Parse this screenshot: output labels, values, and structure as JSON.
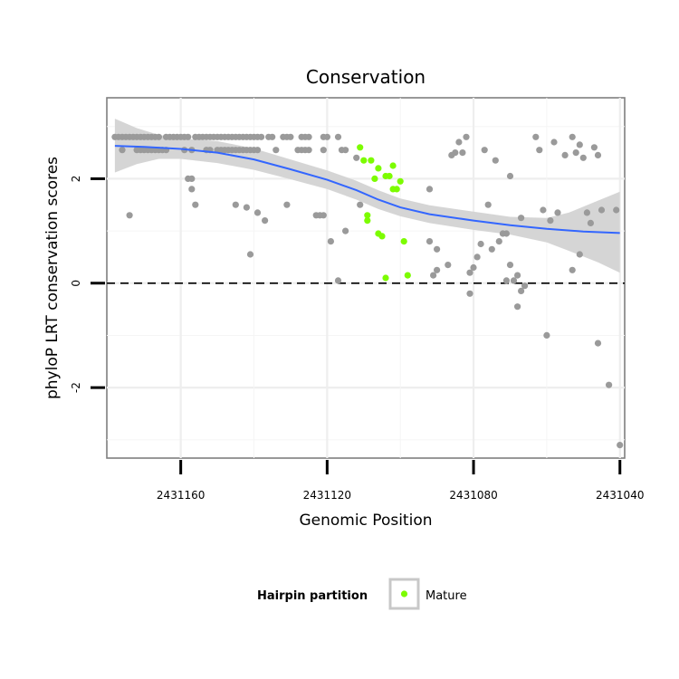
{
  "chart_data": {
    "type": "scatter",
    "title": "Conservation",
    "xlabel": "Genomic Position",
    "ylabel": "phyloP LRT conservation scores",
    "x_reversed": true,
    "xlim": [
      2431038.7,
      2431180.2
    ],
    "ylim": [
      -3.35,
      3.55
    ],
    "x_ticks": [
      2431160,
      2431120,
      2431080,
      2431040
    ],
    "x_tick_labels": [
      "2431160",
      "2431120",
      "2431080",
      "2431040"
    ],
    "y_ticks": [
      -2,
      0,
      2
    ],
    "y_tick_labels": [
      "-2",
      "0",
      "2"
    ],
    "grid": true,
    "reference_line": {
      "y": 0,
      "style": "dashed"
    },
    "legend": {
      "title": "Hairpin partition",
      "position": "bottom",
      "entries": [
        {
          "label": "Mature",
          "color": "#7cfc00"
        }
      ]
    },
    "colors": {
      "other": "#9a9a9a",
      "mature": "#7cfc00",
      "smooth": "#3366ff",
      "ribbon": "#d3d3d3"
    },
    "series": [
      {
        "name": "Other",
        "points": [
          [
            2431178,
            2.8
          ],
          [
            2431177,
            2.8
          ],
          [
            2431176,
            2.8
          ],
          [
            2431175,
            2.8
          ],
          [
            2431174,
            2.8
          ],
          [
            2431173,
            2.8
          ],
          [
            2431172,
            2.8
          ],
          [
            2431171,
            2.8
          ],
          [
            2431170,
            2.8
          ],
          [
            2431169,
            2.8
          ],
          [
            2431168,
            2.8
          ],
          [
            2431167,
            2.8
          ],
          [
            2431166,
            2.8
          ],
          [
            2431164,
            2.8
          ],
          [
            2431163,
            2.8
          ],
          [
            2431162,
            2.8
          ],
          [
            2431161,
            2.8
          ],
          [
            2431160,
            2.8
          ],
          [
            2431159,
            2.8
          ],
          [
            2431158,
            2.8
          ],
          [
            2431156,
            2.8
          ],
          [
            2431155,
            2.8
          ],
          [
            2431154,
            2.8
          ],
          [
            2431153,
            2.8
          ],
          [
            2431152,
            2.8
          ],
          [
            2431151,
            2.8
          ],
          [
            2431150,
            2.8
          ],
          [
            2431149,
            2.8
          ],
          [
            2431148,
            2.8
          ],
          [
            2431147,
            2.8
          ],
          [
            2431146,
            2.8
          ],
          [
            2431145,
            2.8
          ],
          [
            2431144,
            2.8
          ],
          [
            2431143,
            2.8
          ],
          [
            2431142,
            2.8
          ],
          [
            2431141,
            2.8
          ],
          [
            2431140,
            2.8
          ],
          [
            2431139,
            2.8
          ],
          [
            2431138,
            2.8
          ],
          [
            2431136,
            2.8
          ],
          [
            2431135,
            2.8
          ],
          [
            2431132,
            2.8
          ],
          [
            2431131,
            2.8
          ],
          [
            2431130,
            2.8
          ],
          [
            2431127,
            2.8
          ],
          [
            2431126,
            2.8
          ],
          [
            2431125,
            2.8
          ],
          [
            2431121,
            2.8
          ],
          [
            2431120,
            2.8
          ],
          [
            2431117,
            2.8
          ],
          [
            2431176,
            2.55
          ],
          [
            2431172,
            2.55
          ],
          [
            2431171,
            2.55
          ],
          [
            2431170,
            2.55
          ],
          [
            2431169,
            2.55
          ],
          [
            2431168,
            2.55
          ],
          [
            2431167,
            2.55
          ],
          [
            2431166,
            2.55
          ],
          [
            2431165,
            2.55
          ],
          [
            2431164,
            2.55
          ],
          [
            2431159,
            2.55
          ],
          [
            2431157,
            2.55
          ],
          [
            2431153,
            2.55
          ],
          [
            2431152,
            2.55
          ],
          [
            2431150,
            2.55
          ],
          [
            2431149,
            2.55
          ],
          [
            2431148,
            2.55
          ],
          [
            2431147,
            2.55
          ],
          [
            2431146,
            2.55
          ],
          [
            2431145,
            2.55
          ],
          [
            2431144,
            2.55
          ],
          [
            2431143,
            2.55
          ],
          [
            2431142,
            2.55
          ],
          [
            2431141,
            2.55
          ],
          [
            2431140,
            2.55
          ],
          [
            2431139,
            2.55
          ],
          [
            2431134,
            2.55
          ],
          [
            2431128,
            2.55
          ],
          [
            2431127,
            2.55
          ],
          [
            2431126,
            2.55
          ],
          [
            2431125,
            2.55
          ],
          [
            2431121,
            2.55
          ],
          [
            2431116,
            2.55
          ],
          [
            2431115,
            2.55
          ],
          [
            2431112,
            2.4
          ],
          [
            2431158,
            2.0
          ],
          [
            2431157,
            2.0
          ],
          [
            2431157,
            1.8
          ],
          [
            2431156,
            1.5
          ],
          [
            2431145,
            1.5
          ],
          [
            2431142,
            1.45
          ],
          [
            2431139,
            1.35
          ],
          [
            2431137,
            1.2
          ],
          [
            2431131,
            1.5
          ],
          [
            2431123,
            1.3
          ],
          [
            2431122,
            1.3
          ],
          [
            2431121,
            1.3
          ],
          [
            2431119,
            0.8
          ],
          [
            2431174,
            1.3
          ],
          [
            2431141,
            0.55
          ],
          [
            2431115,
            1.0
          ],
          [
            2431111,
            1.5
          ],
          [
            2431117,
            0.05
          ],
          [
            2431092,
            1.8
          ],
          [
            2431082,
            2.8
          ],
          [
            2431084,
            2.7
          ],
          [
            2431085,
            2.5
          ],
          [
            2431083,
            2.5
          ],
          [
            2431086,
            2.45
          ],
          [
            2431077,
            2.55
          ],
          [
            2431074,
            2.35
          ],
          [
            2431076,
            1.5
          ],
          [
            2431070,
            2.05
          ],
          [
            2431067,
            1.25
          ],
          [
            2431072,
            0.95
          ],
          [
            2431071,
            0.95
          ],
          [
            2431073,
            0.8
          ],
          [
            2431075,
            0.65
          ],
          [
            2431078,
            0.75
          ],
          [
            2431070,
            0.35
          ],
          [
            2431081,
            0.2
          ],
          [
            2431080,
            0.3
          ],
          [
            2431081,
            -0.2
          ],
          [
            2431079,
            0.5
          ],
          [
            2431087,
            0.35
          ],
          [
            2431090,
            0.25
          ],
          [
            2431091,
            0.15
          ],
          [
            2431090,
            0.65
          ],
          [
            2431092,
            0.8
          ],
          [
            2431069,
            0.05
          ],
          [
            2431067,
            -0.15
          ],
          [
            2431066,
            -0.05
          ],
          [
            2431068,
            0.15
          ],
          [
            2431071,
            0.05
          ],
          [
            2431068,
            -0.45
          ],
          [
            2431061,
            1.4
          ],
          [
            2431063,
            2.8
          ],
          [
            2431062,
            2.55
          ],
          [
            2431058,
            2.7
          ],
          [
            2431057,
            1.35
          ],
          [
            2431055,
            2.45
          ],
          [
            2431053,
            2.8
          ],
          [
            2431052,
            2.5
          ],
          [
            2431051,
            2.65
          ],
          [
            2431050,
            2.4
          ],
          [
            2431047,
            2.6
          ],
          [
            2431046,
            2.45
          ],
          [
            2431059,
            1.2
          ],
          [
            2431053,
            0.25
          ],
          [
            2431051,
            0.55
          ],
          [
            2431049,
            1.35
          ],
          [
            2431045,
            1.4
          ],
          [
            2431048,
            1.15
          ],
          [
            2431041,
            1.4
          ],
          [
            2431060,
            -1.0
          ],
          [
            2431046,
            -1.15
          ],
          [
            2431043,
            -1.95
          ],
          [
            2431040,
            -3.1
          ]
        ]
      },
      {
        "name": "Mature",
        "points": [
          [
            2431111,
            2.6
          ],
          [
            2431110,
            2.35
          ],
          [
            2431108,
            2.35
          ],
          [
            2431106,
            2.2
          ],
          [
            2431107,
            2.0
          ],
          [
            2431104,
            2.05
          ],
          [
            2431103,
            2.05
          ],
          [
            2431102,
            2.25
          ],
          [
            2431102,
            1.8
          ],
          [
            2431101,
            1.8
          ],
          [
            2431100,
            1.95
          ],
          [
            2431109,
            1.3
          ],
          [
            2431109,
            1.2
          ],
          [
            2431106,
            0.95
          ],
          [
            2431105,
            0.9
          ],
          [
            2431104,
            0.1
          ],
          [
            2431099,
            0.8
          ],
          [
            2431098,
            0.15
          ]
        ]
      }
    ],
    "smooth": {
      "method": "loess",
      "line": [
        [
          2431178,
          2.63
        ],
        [
          2431170,
          2.61
        ],
        [
          2431160,
          2.57
        ],
        [
          2431150,
          2.5
        ],
        [
          2431140,
          2.37
        ],
        [
          2431130,
          2.18
        ],
        [
          2431120,
          1.98
        ],
        [
          2431112,
          1.78
        ],
        [
          2431106,
          1.6
        ],
        [
          2431100,
          1.45
        ],
        [
          2431092,
          1.32
        ],
        [
          2431080,
          1.2
        ],
        [
          2431070,
          1.11
        ],
        [
          2431060,
          1.04
        ],
        [
          2431050,
          0.99
        ],
        [
          2431040,
          0.96
        ]
      ],
      "upper": [
        [
          2431178,
          3.15
        ],
        [
          2431172,
          2.97
        ],
        [
          2431166,
          2.84
        ],
        [
          2431160,
          2.77
        ],
        [
          2431150,
          2.72
        ],
        [
          2431140,
          2.58
        ],
        [
          2431130,
          2.37
        ],
        [
          2431120,
          2.16
        ],
        [
          2431112,
          1.96
        ],
        [
          2431106,
          1.78
        ],
        [
          2431100,
          1.62
        ],
        [
          2431092,
          1.49
        ],
        [
          2431080,
          1.37
        ],
        [
          2431070,
          1.27
        ],
        [
          2431060,
          1.25
        ],
        [
          2431054,
          1.35
        ],
        [
          2431046,
          1.58
        ],
        [
          2431040,
          1.75
        ]
      ],
      "lower": [
        [
          2431040,
          0.2
        ],
        [
          2431046,
          0.4
        ],
        [
          2431054,
          0.62
        ],
        [
          2431060,
          0.78
        ],
        [
          2431070,
          0.93
        ],
        [
          2431080,
          1.02
        ],
        [
          2431092,
          1.15
        ],
        [
          2431100,
          1.28
        ],
        [
          2431106,
          1.42
        ],
        [
          2431112,
          1.6
        ],
        [
          2431120,
          1.8
        ],
        [
          2431130,
          1.99
        ],
        [
          2431140,
          2.17
        ],
        [
          2431150,
          2.3
        ],
        [
          2431160,
          2.38
        ],
        [
          2431166,
          2.38
        ],
        [
          2431172,
          2.28
        ],
        [
          2431178,
          2.12
        ]
      ]
    }
  }
}
